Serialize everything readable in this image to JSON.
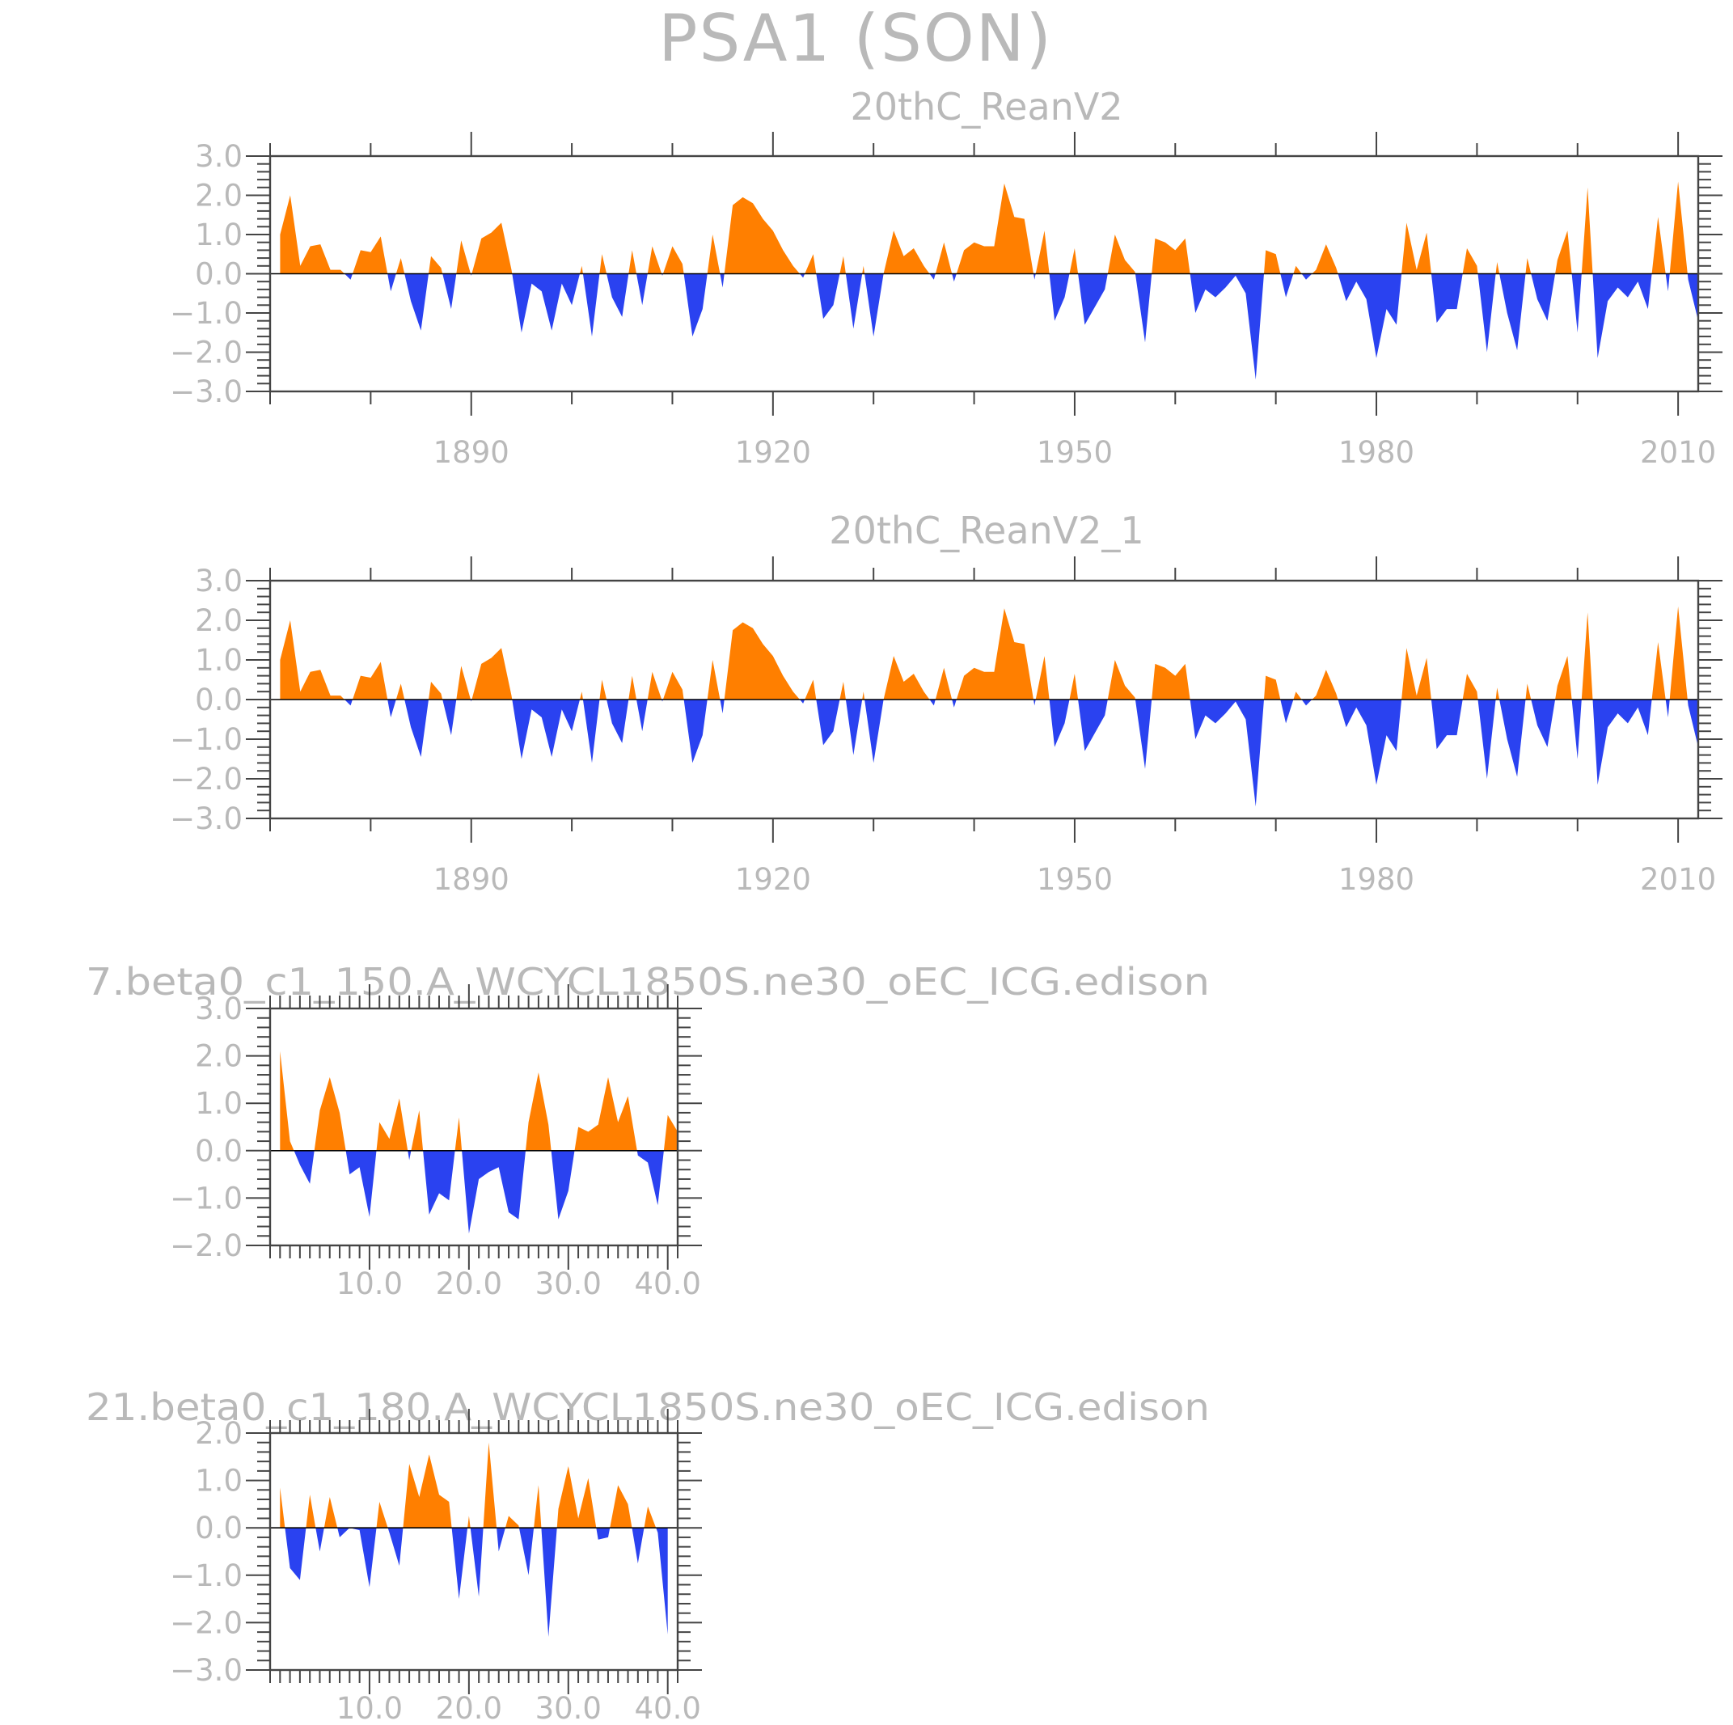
{
  "figure_title": "PSA1 (SON)",
  "colors": {
    "positive": "#ff7f00",
    "negative": "#2a42f0",
    "text": "#b9b9b9",
    "frame": "#444444"
  },
  "chart_data": [
    {
      "type": "area",
      "title": "20thC_ReanV2",
      "xlabel": "",
      "ylabel": "",
      "xlim": [
        1870,
        2012
      ],
      "ylim": [
        -3.0,
        3.0
      ],
      "x_major_ticks": [
        1890,
        1920,
        1950,
        1980,
        2010
      ],
      "x_tick_labels": [
        "1890",
        "1920",
        "1950",
        "1980",
        "2010"
      ],
      "y_major_ticks": [
        -3.0,
        -2.0,
        -1.0,
        0.0,
        1.0,
        2.0,
        3.0
      ],
      "y_tick_labels": [
        "−3.0",
        "−2.0",
        "−1.0",
        "0.0",
        "1.0",
        "2.0",
        "3.0"
      ],
      "fill_above_zero": "positive",
      "fill_below_zero": "negative",
      "x_start": 1871,
      "x_step": 1,
      "values": [
        1.0,
        2.0,
        0.2,
        0.7,
        0.75,
        0.1,
        0.1,
        -0.15,
        0.6,
        0.55,
        0.95,
        -0.45,
        0.4,
        -0.7,
        -1.45,
        0.45,
        0.15,
        -0.9,
        0.85,
        -0.05,
        0.9,
        1.05,
        1.3,
        0.1,
        -1.5,
        -0.25,
        -0.45,
        -1.45,
        -0.25,
        -0.8,
        0.2,
        -1.6,
        0.5,
        -0.6,
        -1.1,
        0.6,
        -0.8,
        0.7,
        -0.05,
        0.7,
        0.25,
        -1.6,
        -0.9,
        1.0,
        -0.35,
        1.75,
        1.95,
        1.8,
        1.4,
        1.1,
        0.6,
        0.2,
        -0.1,
        0.5,
        -1.15,
        -0.8,
        0.45,
        -1.4,
        0.2,
        -1.6,
        0.0,
        1.1,
        0.45,
        0.65,
        0.2,
        -0.15,
        0.8,
        -0.2,
        0.6,
        0.8,
        0.7,
        0.7,
        2.3,
        1.45,
        1.4,
        -0.15,
        1.1,
        -1.2,
        -0.6,
        0.65,
        -1.3,
        -0.85,
        -0.4,
        1.0,
        0.35,
        0.05,
        -1.75,
        0.9,
        0.8,
        0.6,
        0.9,
        -1.0,
        -0.4,
        -0.6,
        -0.35,
        -0.05,
        -0.5,
        -2.7,
        0.6,
        0.5,
        -0.6,
        0.2,
        -0.15,
        0.1,
        0.75,
        0.15,
        -0.7,
        -0.2,
        -0.65,
        -2.15,
        -0.9,
        -1.3,
        1.3,
        0.1,
        1.05,
        -1.25,
        -0.9,
        -0.9,
        0.65,
        0.2,
        -2.0,
        0.3,
        -1.0,
        -1.95,
        0.4,
        -0.65,
        -1.2,
        0.35,
        1.1,
        -1.5,
        2.2,
        -2.15,
        -0.7,
        -0.35,
        -0.6,
        -0.2,
        -0.9,
        1.45,
        -0.45,
        2.35,
        -0.15,
        -1.2
      ]
    },
    {
      "type": "area",
      "title": "20thC_ReanV2_1",
      "xlabel": "",
      "ylabel": "",
      "xlim": [
        1870,
        2012
      ],
      "ylim": [
        -3.0,
        3.0
      ],
      "x_major_ticks": [
        1890,
        1920,
        1950,
        1980,
        2010
      ],
      "x_tick_labels": [
        "1890",
        "1920",
        "1950",
        "1980",
        "2010"
      ],
      "y_major_ticks": [
        -3.0,
        -2.0,
        -1.0,
        0.0,
        1.0,
        2.0,
        3.0
      ],
      "y_tick_labels": [
        "−3.0",
        "−2.0",
        "−1.0",
        "0.0",
        "1.0",
        "2.0",
        "3.0"
      ],
      "fill_above_zero": "positive",
      "fill_below_zero": "negative",
      "x_start": 1871,
      "x_step": 1,
      "values": [
        1.0,
        2.0,
        0.2,
        0.7,
        0.75,
        0.1,
        0.1,
        -0.15,
        0.6,
        0.55,
        0.95,
        -0.45,
        0.4,
        -0.7,
        -1.45,
        0.45,
        0.15,
        -0.9,
        0.85,
        -0.05,
        0.9,
        1.05,
        1.3,
        0.1,
        -1.5,
        -0.25,
        -0.45,
        -1.45,
        -0.25,
        -0.8,
        0.2,
        -1.6,
        0.5,
        -0.6,
        -1.1,
        0.6,
        -0.8,
        0.7,
        -0.05,
        0.7,
        0.25,
        -1.6,
        -0.9,
        1.0,
        -0.35,
        1.75,
        1.95,
        1.8,
        1.4,
        1.1,
        0.6,
        0.2,
        -0.1,
        0.5,
        -1.15,
        -0.8,
        0.45,
        -1.4,
        0.2,
        -1.6,
        0.0,
        1.1,
        0.45,
        0.65,
        0.2,
        -0.15,
        0.8,
        -0.2,
        0.6,
        0.8,
        0.7,
        0.7,
        2.3,
        1.45,
        1.4,
        -0.15,
        1.1,
        -1.2,
        -0.6,
        0.65,
        -1.3,
        -0.85,
        -0.4,
        1.0,
        0.35,
        0.05,
        -1.75,
        0.9,
        0.8,
        0.6,
        0.9,
        -1.0,
        -0.4,
        -0.6,
        -0.35,
        -0.05,
        -0.5,
        -2.7,
        0.6,
        0.5,
        -0.6,
        0.2,
        -0.15,
        0.1,
        0.75,
        0.15,
        -0.7,
        -0.2,
        -0.65,
        -2.15,
        -0.9,
        -1.3,
        1.3,
        0.1,
        1.05,
        -1.25,
        -0.9,
        -0.9,
        0.65,
        0.2,
        -2.0,
        0.3,
        -1.0,
        -1.95,
        0.4,
        -0.65,
        -1.2,
        0.35,
        1.1,
        -1.5,
        2.2,
        -2.15,
        -0.7,
        -0.35,
        -0.6,
        -0.2,
        -0.9,
        1.45,
        -0.45,
        2.35,
        -0.15,
        -1.2
      ]
    },
    {
      "type": "area",
      "title": "7.beta0_c1_150.A_WCYCL1850S.ne30_oEC_ICG.edison",
      "xlabel": "",
      "ylabel": "",
      "xlim": [
        0,
        41
      ],
      "ylim": [
        -2.0,
        3.0
      ],
      "x_major_ticks": [
        10,
        20,
        30,
        40
      ],
      "x_tick_labels": [
        "10.0",
        "20.0",
        "30.0",
        "40.0"
      ],
      "y_major_ticks": [
        -2.0,
        -1.0,
        0.0,
        1.0,
        2.0,
        3.0
      ],
      "y_tick_labels": [
        "−2.0",
        "−1.0",
        "0.0",
        "1.0",
        "2.0",
        "3.0"
      ],
      "fill_above_zero": "positive",
      "fill_below_zero": "negative",
      "x_start": 1,
      "x_step": 1,
      "values": [
        2.1,
        0.2,
        -0.3,
        -0.7,
        0.85,
        1.55,
        0.8,
        -0.5,
        -0.35,
        -1.4,
        0.6,
        0.25,
        1.1,
        -0.2,
        0.85,
        -1.35,
        -0.9,
        -1.05,
        0.7,
        -1.75,
        -0.6,
        -0.45,
        -0.35,
        -1.3,
        -1.45,
        0.6,
        1.65,
        0.55,
        -1.45,
        -0.85,
        0.5,
        0.4,
        0.55,
        1.55,
        0.6,
        1.15,
        -0.1,
        -0.25,
        -1.15,
        0.75,
        0.4
      ]
    },
    {
      "type": "area",
      "title": "21.beta0_c1_180.A_WCYCL1850S.ne30_oEC_ICG.edison",
      "xlabel": "",
      "ylabel": "",
      "xlim": [
        0,
        41
      ],
      "ylim": [
        -3.0,
        2.0
      ],
      "x_major_ticks": [
        10,
        20,
        30,
        40
      ],
      "x_tick_labels": [
        "10.0",
        "20.0",
        "30.0",
        "40.0"
      ],
      "y_major_ticks": [
        -3.0,
        -2.0,
        -1.0,
        0.0,
        1.0,
        2.0
      ],
      "y_tick_labels": [
        "−3.0",
        "−2.0",
        "−1.0",
        "0.0",
        "1.0",
        "2.0"
      ],
      "fill_above_zero": "positive",
      "fill_below_zero": "negative",
      "x_start": 1,
      "x_step": 1,
      "values": [
        0.85,
        -0.85,
        -1.1,
        0.7,
        -0.5,
        0.65,
        -0.2,
        0.0,
        -0.05,
        -1.25,
        0.55,
        -0.1,
        -0.8,
        1.35,
        0.65,
        1.55,
        0.7,
        0.55,
        -1.5,
        0.25,
        -1.45,
        1.8,
        -0.5,
        0.25,
        0.05,
        -1.0,
        0.9,
        -2.3,
        0.4,
        1.3,
        0.2,
        1.05,
        -0.25,
        -0.2,
        0.9,
        0.5,
        -0.75,
        0.45,
        -0.1,
        -2.25
      ]
    }
  ]
}
